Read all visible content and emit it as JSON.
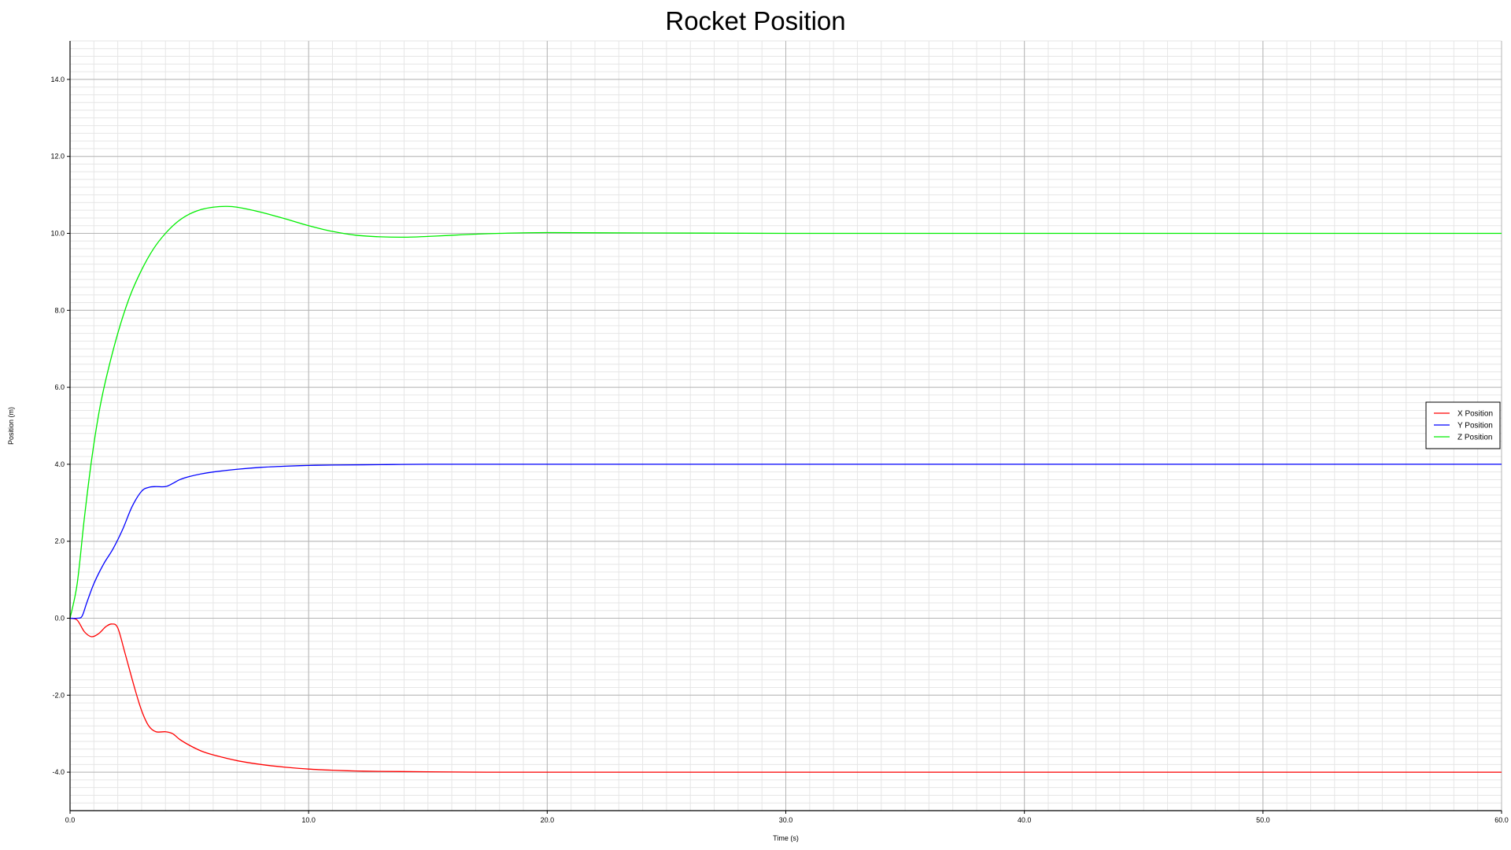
{
  "chart_data": {
    "type": "line",
    "title": "Rocket Position",
    "xlabel": "Time (s)",
    "ylabel": "Position (m)",
    "xlim": [
      0,
      60
    ],
    "ylim": [
      -5,
      15
    ],
    "x_ticks": [
      0,
      10,
      20,
      30,
      40,
      50,
      60
    ],
    "x_tick_labels": [
      "0.0",
      "10.0",
      "20.0",
      "30.0",
      "40.0",
      "50.0",
      "60.0"
    ],
    "y_ticks": [
      -4,
      -2,
      0,
      2,
      4,
      6,
      8,
      10,
      12,
      14
    ],
    "y_tick_labels": [
      "-4.0",
      "-2.0",
      "0.0",
      "2.0",
      "4.0",
      "6.0",
      "8.0",
      "10.0",
      "12.0",
      "14.0"
    ],
    "grid": true,
    "legend_position": "right",
    "series": [
      {
        "name": "X Position",
        "color": "#ff0000",
        "x": [
          0,
          0.3,
          0.6,
          0.9,
          1.2,
          1.5,
          1.75,
          2.0,
          2.3,
          2.7,
          3.0,
          3.3,
          3.6,
          4.0,
          4.3,
          4.6,
          5.0,
          5.5,
          6.0,
          7.0,
          8.0,
          9.0,
          10.0,
          11.0,
          12.0,
          13.0,
          15.0,
          17.5,
          20.0,
          30.0,
          40.0,
          50.0,
          60.0
        ],
        "y": [
          0,
          -0.05,
          -0.35,
          -0.48,
          -0.4,
          -0.22,
          -0.15,
          -0.25,
          -0.9,
          -1.8,
          -2.4,
          -2.8,
          -2.95,
          -2.95,
          -3.0,
          -3.15,
          -3.3,
          -3.45,
          -3.55,
          -3.7,
          -3.8,
          -3.87,
          -3.92,
          -3.95,
          -3.97,
          -3.98,
          -3.99,
          -4.0,
          -4.0,
          -4.0,
          -4.0,
          -4.0,
          -4.0
        ]
      },
      {
        "name": "Y Position",
        "color": "#0000ff",
        "x": [
          0,
          0.3,
          0.5,
          0.7,
          1.0,
          1.4,
          1.8,
          2.2,
          2.6,
          3.0,
          3.3,
          3.6,
          4.0,
          4.3,
          4.6,
          5.0,
          5.5,
          6.0,
          7.0,
          8.0,
          9.0,
          10.0,
          11.0,
          13.0,
          15.0,
          20.0,
          30.0,
          40.0,
          50.0,
          60.0
        ],
        "y": [
          0,
          0,
          0.05,
          0.4,
          0.9,
          1.4,
          1.8,
          2.3,
          2.9,
          3.3,
          3.4,
          3.42,
          3.42,
          3.5,
          3.6,
          3.68,
          3.75,
          3.8,
          3.87,
          3.92,
          3.95,
          3.97,
          3.98,
          3.99,
          4.0,
          4.0,
          4.0,
          4.0,
          4.0,
          4.0
        ]
      },
      {
        "name": "Z Position",
        "color": "#00ee00",
        "x": [
          0,
          0.3,
          0.6,
          0.9,
          1.2,
          1.5,
          2.0,
          2.5,
          3.0,
          3.5,
          4.0,
          4.5,
          5.0,
          5.5,
          6.0,
          6.5,
          7.0,
          8.0,
          9.0,
          10.0,
          11.0,
          12.0,
          13.0,
          14.0,
          15.0,
          16.0,
          17.0,
          18.0,
          20.0,
          24.0,
          30.0,
          40.0,
          50.0,
          60.0
        ],
        "y": [
          0,
          0.9,
          2.6,
          4.1,
          5.3,
          6.2,
          7.4,
          8.35,
          9.05,
          9.6,
          10.0,
          10.3,
          10.5,
          10.62,
          10.68,
          10.7,
          10.68,
          10.55,
          10.38,
          10.2,
          10.05,
          9.95,
          9.91,
          9.9,
          9.92,
          9.95,
          9.98,
          10.0,
          10.02,
          10.01,
          10.0,
          10.0,
          10.0,
          10.0
        ]
      }
    ]
  }
}
